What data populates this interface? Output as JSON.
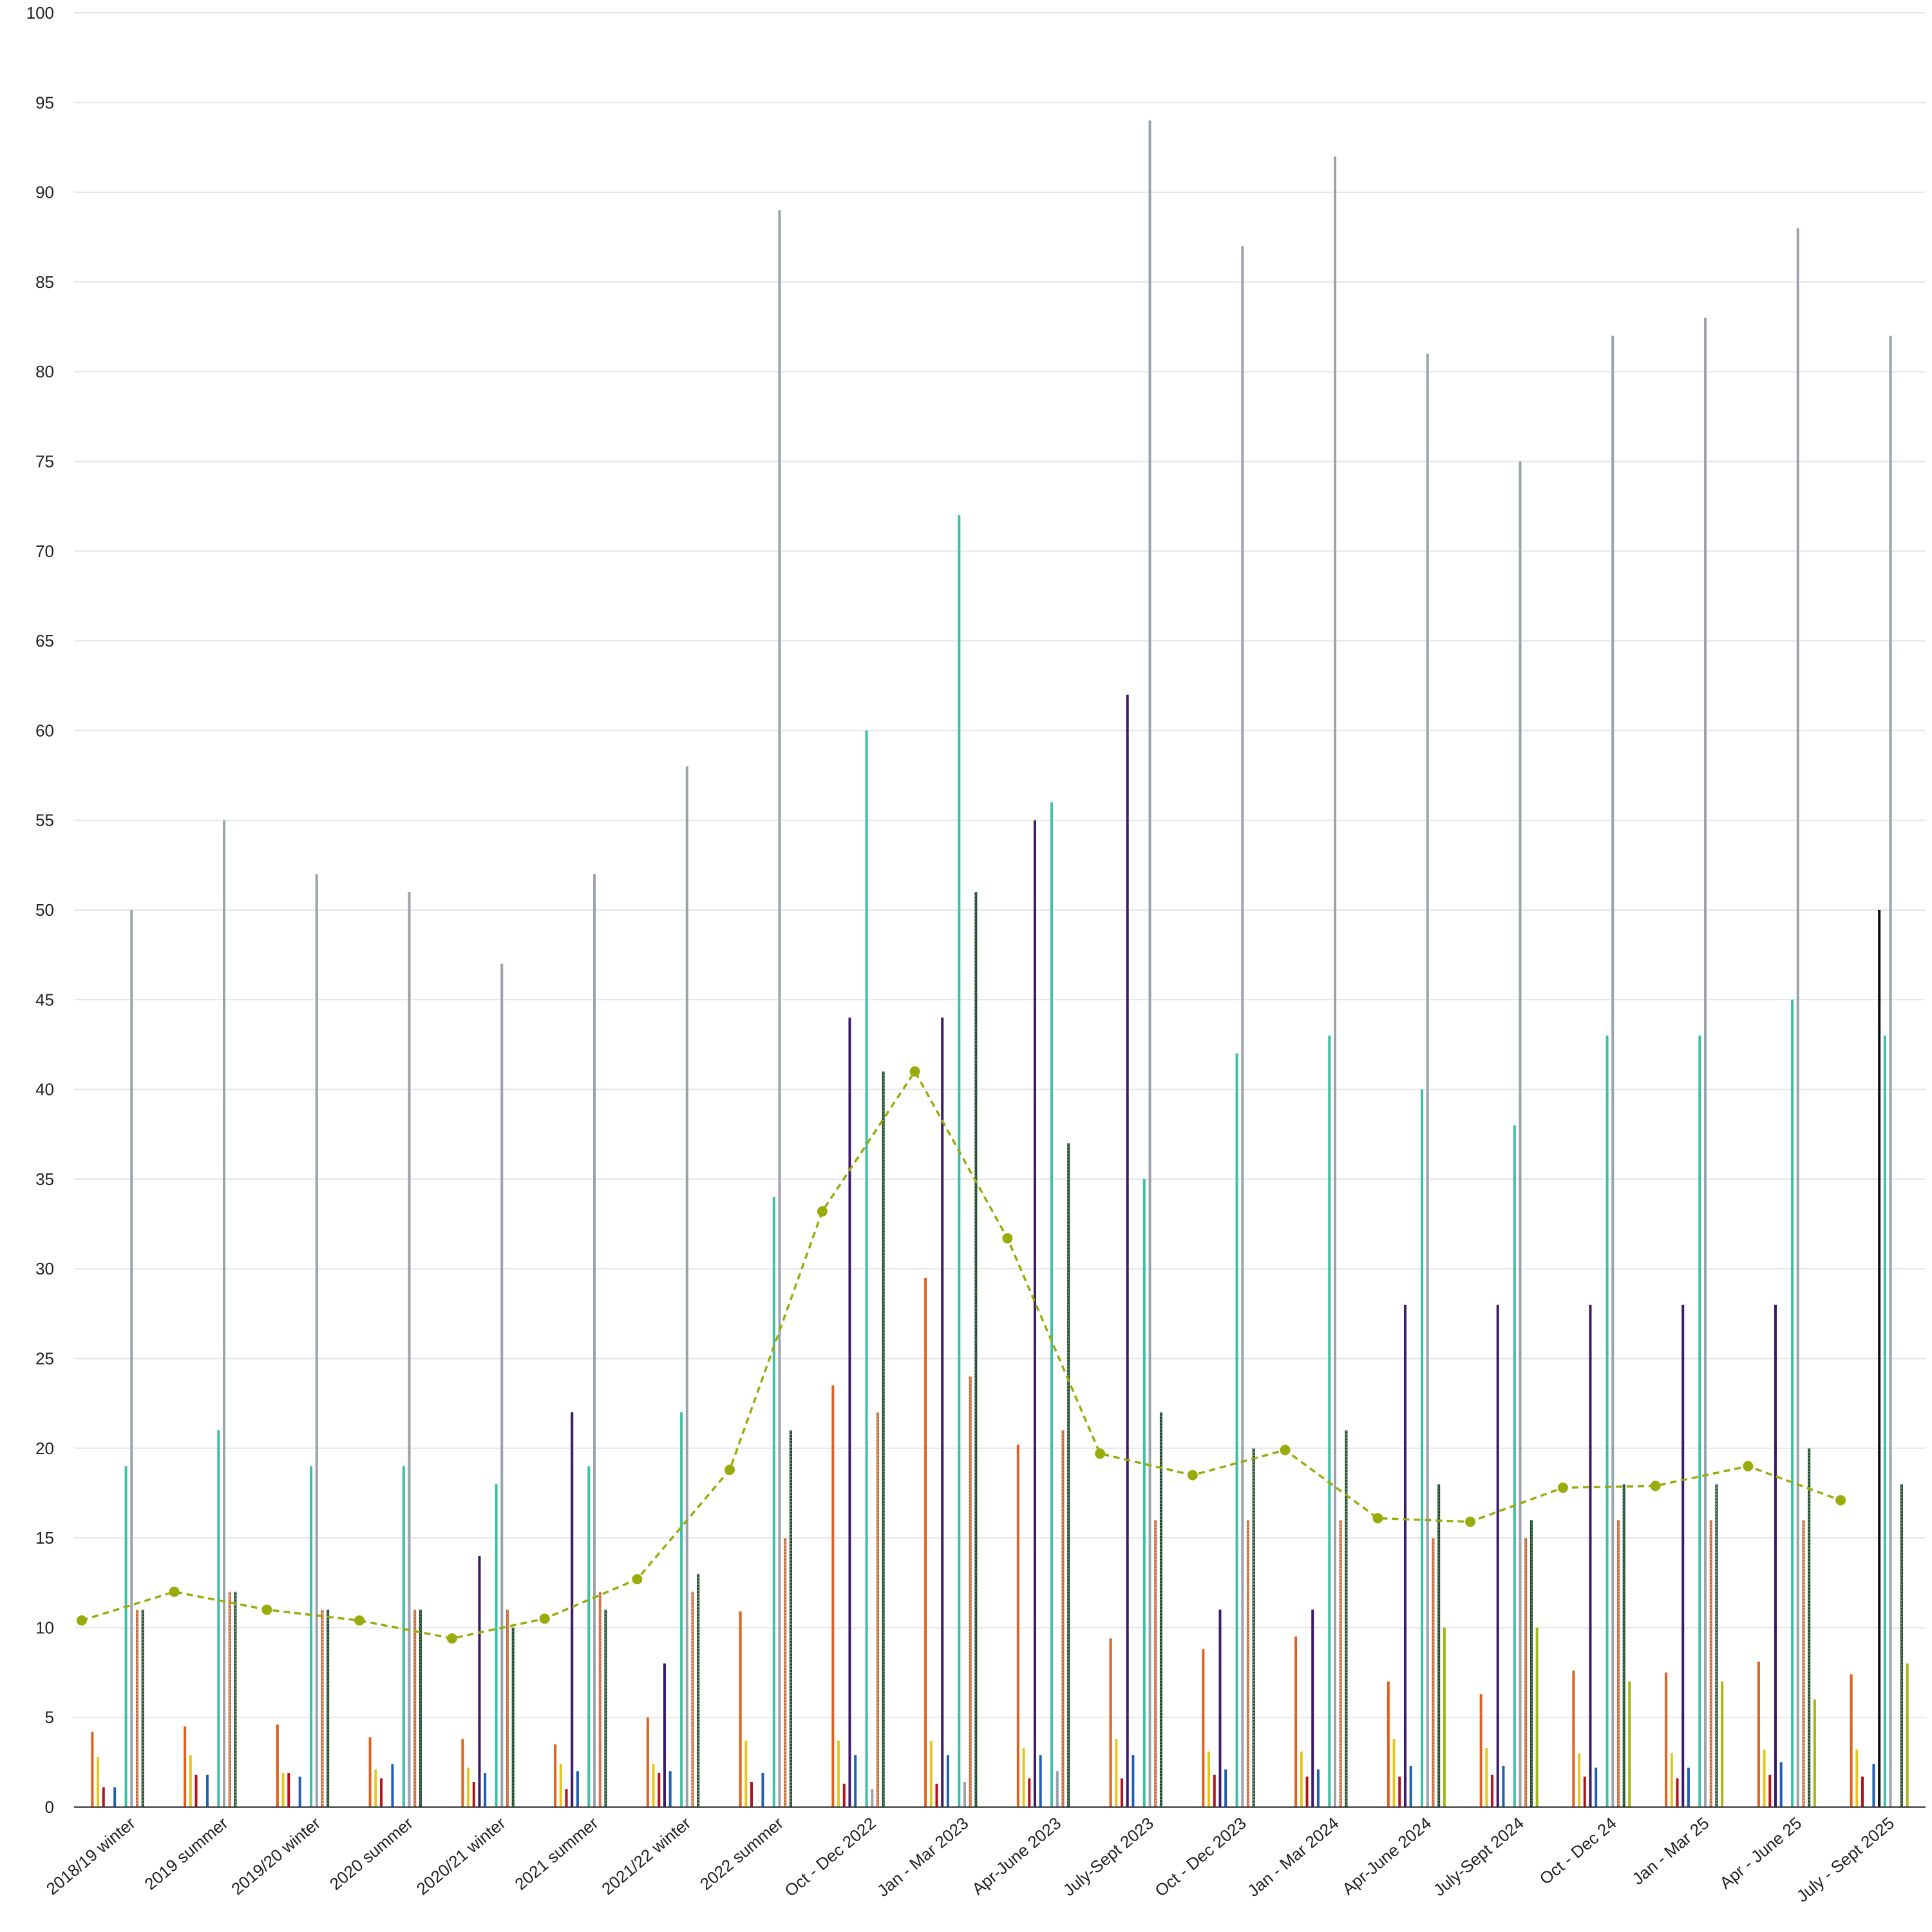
{
  "chart_data": {
    "type": "bar",
    "title": "",
    "xlabel": "",
    "ylabel": "",
    "ylim": [
      0,
      100
    ],
    "yticks": [
      0,
      5,
      10,
      15,
      20,
      25,
      30,
      35,
      40,
      45,
      50,
      55,
      60,
      65,
      70,
      75,
      80,
      85,
      90,
      95,
      100
    ],
    "grid": true,
    "legend": "none",
    "categories": [
      "2018/19 winter",
      "2019 summer",
      "2019/20 winter",
      "2020 summer",
      "2020/21 winter",
      "2021 summer",
      "2021/22 winter",
      "2022 summer",
      "Oct - Dec 2022",
      "Jan - Mar 2023",
      "Apr-June 2023",
      "July-Sept 2023",
      "Oct - Dec 2023",
      "Jan - Mar 2024",
      "Apr-June 2024",
      "July-Sept 2024",
      "Oct - Dec 24",
      "Jan - Mar 25",
      "Apr - June 25",
      "July - Sept 2025"
    ],
    "series": [
      {
        "color": "#e0611f",
        "style": "solid",
        "values": [
          4.2,
          4.5,
          4.6,
          3.9,
          3.8,
          3.5,
          5.0,
          10.9,
          23.5,
          29.5,
          20.2,
          9.4,
          8.8,
          9.5,
          7.0,
          6.3,
          7.6,
          7.5,
          8.1,
          7.4
        ]
      },
      {
        "color": "#e8c619",
        "style": "solid",
        "values": [
          2.8,
          2.9,
          1.9,
          2.1,
          2.2,
          2.4,
          2.4,
          3.7,
          3.7,
          3.7,
          3.3,
          3.8,
          3.1,
          3.1,
          3.8,
          3.3,
          3.0,
          3.0,
          3.2,
          3.2
        ]
      },
      {
        "color": "#b5121b",
        "style": "solid",
        "values": [
          1.1,
          1.8,
          1.9,
          1.6,
          1.4,
          1.0,
          1.9,
          1.4,
          1.3,
          1.3,
          1.6,
          1.6,
          1.8,
          1.7,
          1.7,
          1.8,
          1.7,
          1.6,
          1.8,
          1.7
        ]
      },
      {
        "color": "#3b1a68",
        "style": "solid",
        "values": [
          0,
          0,
          0,
          0,
          14,
          22,
          8,
          0,
          44,
          44,
          55,
          62,
          11,
          11,
          28,
          28,
          28,
          28,
          28,
          0
        ]
      },
      {
        "color": "#1f5fb5",
        "style": "solid",
        "values": [
          1.1,
          1.8,
          1.7,
          2.4,
          1.9,
          2.0,
          2.0,
          1.9,
          2.9,
          2.9,
          2.9,
          2.9,
          2.1,
          2.1,
          2.3,
          2.3,
          2.2,
          2.2,
          2.5,
          2.4
        ]
      },
      {
        "color": "#111111",
        "style": "solid",
        "values": [
          0,
          0,
          0,
          0,
          0,
          0,
          0,
          0,
          0,
          0,
          0,
          0,
          0,
          0,
          0,
          0,
          0,
          0,
          0,
          50
        ]
      },
      {
        "color": "#3dbfa6",
        "style": "solid",
        "values": [
          19,
          21,
          19,
          19,
          18,
          19,
          22,
          34,
          60,
          72,
          56,
          35,
          42,
          43,
          40,
          38,
          43,
          43,
          45,
          43
        ]
      },
      {
        "color": "#9aa3ad",
        "style": "solid",
        "values": [
          50,
          55,
          52,
          51,
          47,
          52,
          58,
          89,
          1.0,
          1.4,
          2.0,
          94,
          87,
          92,
          81,
          75,
          82,
          83,
          88,
          82
        ]
      },
      {
        "color": "#c96a3a",
        "style": "dotted",
        "values": [
          11,
          12,
          11,
          11,
          11,
          12,
          12,
          15,
          22,
          24,
          21,
          16,
          16,
          16,
          15,
          15,
          16,
          16,
          16,
          0
        ]
      },
      {
        "color": "#1c4a2a",
        "style": "dotted",
        "values": [
          11,
          12,
          11,
          11,
          10,
          11,
          13,
          21,
          41,
          51,
          37,
          22,
          20,
          21,
          18,
          16,
          18,
          18,
          20,
          18
        ]
      },
      {
        "color": "#a4b612",
        "style": "solid",
        "values": [
          0,
          0,
          0,
          0,
          0,
          0,
          0,
          0,
          0,
          0,
          0,
          0,
          0,
          0,
          10,
          10,
          7,
          7,
          6,
          8
        ]
      }
    ],
    "line_series": {
      "color": "#9aab0c",
      "style": "dashed",
      "values": [
        10.4,
        12.0,
        11.0,
        10.4,
        9.4,
        10.5,
        12.7,
        18.8,
        33.2,
        41.0,
        31.7,
        19.7,
        18.5,
        19.9,
        16.1,
        15.9,
        17.8,
        17.9,
        19.0,
        17.1
      ]
    }
  }
}
